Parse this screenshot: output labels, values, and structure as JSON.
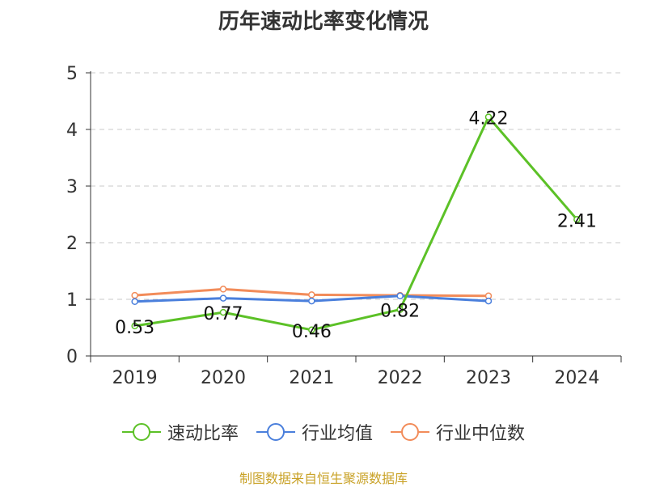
{
  "chart_data": {
    "type": "line",
    "title": "历年速动比率变化情况",
    "categories": [
      "2019",
      "2020",
      "2021",
      "2022",
      "2023",
      "2024"
    ],
    "ylim": [
      0,
      5
    ],
    "yticks": [
      "0",
      "1",
      "2",
      "3",
      "4",
      "5"
    ],
    "grid": true,
    "legend_position": "bottom",
    "series": [
      {
        "name": "速动比率",
        "color": "#5cc127",
        "values": [
          0.53,
          0.77,
          0.46,
          0.82,
          4.22,
          2.41
        ],
        "labels": [
          "0.53",
          "0.77",
          "0.46",
          "0.82",
          "4.22",
          "2.41"
        ]
      },
      {
        "name": "行业均值",
        "color": "#4a7fdc",
        "values": [
          0.96,
          1.02,
          0.97,
          1.06,
          0.97,
          null
        ]
      },
      {
        "name": "行业中位数",
        "color": "#f28c5a",
        "values": [
          1.07,
          1.18,
          1.08,
          1.07,
          1.06,
          null
        ]
      }
    ]
  },
  "source": "制图数据来自恒生聚源数据库"
}
